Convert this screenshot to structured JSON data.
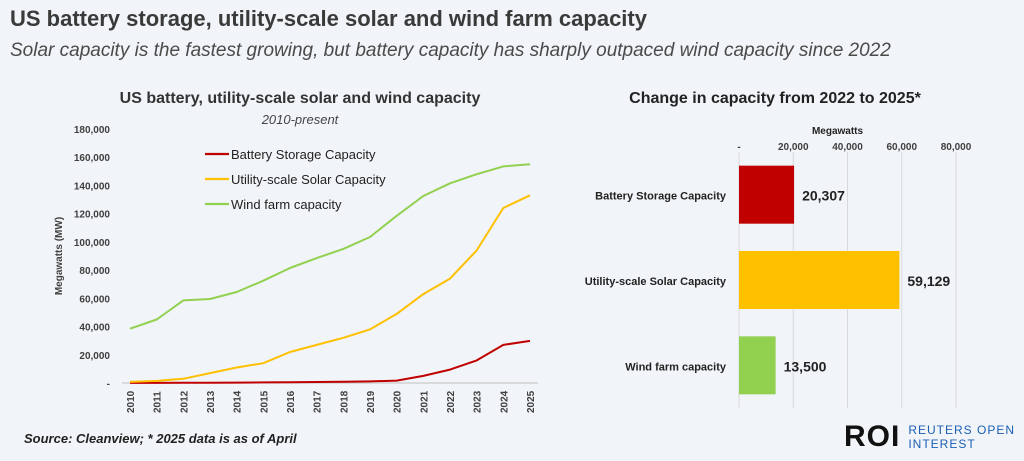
{
  "header": {
    "title": "US battery storage, utility-scale solar and wind farm capacity",
    "subtitle": "Solar capacity is the fastest growing, but battery capacity has sharply outpaced wind capacity since 2022"
  },
  "footer": {
    "source": "Source: Cleanview; * 2025 data is as of April",
    "logo_mark": "ROI",
    "logo_line1": "REUTERS OPEN",
    "logo_line2": "INTEREST"
  },
  "colors": {
    "battery": "#c00000",
    "solar": "#ffc000",
    "wind": "#92d050",
    "grid": "#d9d9d9",
    "axis_text": "#404040"
  },
  "chart_data": [
    {
      "type": "line",
      "title": "US battery, utility-scale solar and wind capacity",
      "subtitle": "2010-present",
      "ylabel": "Megawatts (MW)",
      "xlabel": "",
      "ylim": [
        0,
        180000
      ],
      "yticks": [
        0,
        20000,
        40000,
        60000,
        80000,
        100000,
        120000,
        140000,
        160000,
        180000
      ],
      "ytick_labels": [
        "-",
        "20,000",
        "40,000",
        "60,000",
        "80,000",
        "100,000",
        "120,000",
        "140,000",
        "160,000",
        "180,000"
      ],
      "x": [
        "2010",
        "2011",
        "2012",
        "2013",
        "2014",
        "2015",
        "2016",
        "2017",
        "2018",
        "2019",
        "2020",
        "2021",
        "2022",
        "2023",
        "2024",
        "2025"
      ],
      "legend_position": "top-center",
      "grid": false,
      "series": [
        {
          "name": "Battery Storage Capacity",
          "color_key": "battery",
          "values": [
            100,
            100,
            150,
            200,
            250,
            400,
            500,
            700,
            900,
            1100,
            1700,
            5000,
            9500,
            16000,
            27000,
            29800
          ]
        },
        {
          "name": "Utility-scale Solar Capacity",
          "color_key": "solar",
          "values": [
            800,
            1500,
            3000,
            7000,
            11000,
            14000,
            22000,
            27000,
            32000,
            38000,
            49000,
            63000,
            74000,
            94000,
            124000,
            133000
          ]
        },
        {
          "name": "Wind farm capacity",
          "color_key": "wind",
          "values": [
            38500,
            45000,
            58500,
            59500,
            64500,
            72500,
            81500,
            88500,
            95000,
            103500,
            118500,
            132500,
            141500,
            148000,
            153500,
            155000
          ]
        }
      ]
    },
    {
      "type": "bar",
      "orientation": "horizontal",
      "title": "Change in capacity from 2022 to 2025*",
      "xlabel": "Megawatts",
      "xlim": [
        0,
        80000
      ],
      "xticks": [
        0,
        20000,
        40000,
        60000,
        80000
      ],
      "xtick_labels": [
        "-",
        "20,000",
        "40,000",
        "60,000",
        "80,000"
      ],
      "grid": true,
      "categories": [
        "Battery Storage Capacity",
        "Utility-scale Solar Capacity",
        "Wind farm capacity"
      ],
      "values": [
        20307,
        59129,
        13500
      ],
      "value_labels": [
        "20,307",
        "59,129",
        "13,500"
      ],
      "color_keys": [
        "battery",
        "solar",
        "wind"
      ]
    }
  ]
}
